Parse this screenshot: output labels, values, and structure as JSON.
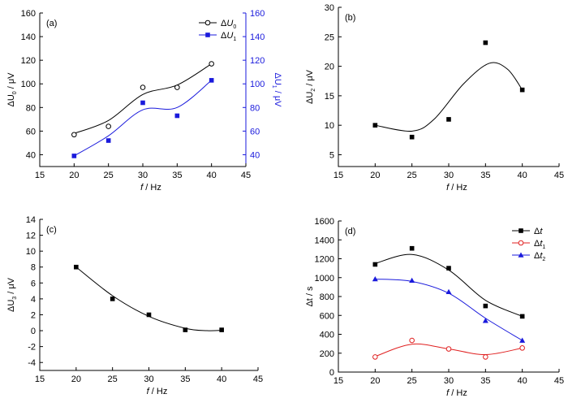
{
  "chart_data": [
    {
      "panel_label": "(a)",
      "type": "scatter",
      "xlabel": "f / Hz",
      "ylabel": "ΔU0 / μV",
      "ylabel_parts": {
        "main": "ΔU",
        "sub": "0",
        "rest": " / μV"
      },
      "y2label_parts": {
        "main": "ΔU",
        "sub": "1",
        "rest": " / μV"
      },
      "xlim": [
        15,
        45
      ],
      "ylim": [
        30,
        160
      ],
      "y2lim": [
        30,
        160
      ],
      "xticks": [
        15,
        20,
        25,
        30,
        35,
        40,
        45
      ],
      "yticks": [
        40,
        60,
        80,
        100,
        120,
        140,
        160
      ],
      "y2ticks": [
        40,
        60,
        80,
        100,
        120,
        140,
        160
      ],
      "legend": {
        "position": "top-right",
        "entries": [
          {
            "main": "ΔU",
            "sub": "0"
          },
          {
            "main": "ΔU",
            "sub": "1"
          }
        ]
      },
      "series": [
        {
          "x": [
            20,
            25,
            30,
            35,
            40
          ],
          "y": [
            57,
            64,
            97,
            97,
            117
          ],
          "marker": "open-circle",
          "color": "#000000",
          "fit": [
            [
              20,
              58
            ],
            [
              25,
              69
            ],
            [
              30,
              91
            ],
            [
              35,
              99
            ],
            [
              40,
              117
            ]
          ]
        },
        {
          "x": [
            20,
            25,
            30,
            35,
            40
          ],
          "y": [
            39,
            52,
            84,
            73,
            103
          ],
          "marker": "square",
          "color": "#1a1adc",
          "axis": "right",
          "fit": [
            [
              20,
              39
            ],
            [
              25,
              56
            ],
            [
              30,
              78
            ],
            [
              35,
              80
            ],
            [
              40,
              103
            ]
          ]
        }
      ]
    },
    {
      "panel_label": "(b)",
      "type": "scatter",
      "xlabel": "f / Hz",
      "ylabel_parts": {
        "main": "ΔU",
        "sub": "2",
        "rest": " / μV"
      },
      "xlim": [
        15,
        45
      ],
      "ylim": [
        3,
        30
      ],
      "xticks": [
        15,
        20,
        25,
        30,
        35,
        40,
        45
      ],
      "yticks": [
        5,
        10,
        15,
        20,
        25,
        30
      ],
      "series": [
        {
          "x": [
            20,
            25,
            30,
            35,
            40
          ],
          "y": [
            10,
            8,
            11,
            24,
            16
          ],
          "marker": "square",
          "color": "#000000",
          "fit": [
            [
              20,
              10
            ],
            [
              25,
              9
            ],
            [
              28,
              11
            ],
            [
              32,
              17
            ],
            [
              35.5,
              20.5
            ],
            [
              38,
              19.5
            ],
            [
              40,
              16
            ]
          ]
        }
      ]
    },
    {
      "panel_label": "(c)",
      "type": "scatter",
      "xlabel": "f / Hz",
      "ylabel_parts": {
        "main": "ΔU",
        "sub": "3",
        "rest": " / μV"
      },
      "xlim": [
        15,
        45
      ],
      "ylim": [
        -5,
        14
      ],
      "xticks": [
        15,
        20,
        25,
        30,
        35,
        40,
        45
      ],
      "yticks": [
        -4,
        -2,
        0,
        2,
        4,
        6,
        8,
        10,
        12,
        14
      ],
      "series": [
        {
          "x": [
            20,
            25,
            30,
            35,
            40
          ],
          "y": [
            8,
            4,
            2,
            0.1,
            0.1
          ],
          "marker": "square",
          "color": "#000000",
          "fit": [
            [
              20,
              8
            ],
            [
              25,
              4.4
            ],
            [
              30,
              1.8
            ],
            [
              35,
              0.3
            ],
            [
              38,
              0
            ],
            [
              40,
              0.05
            ]
          ]
        }
      ]
    },
    {
      "panel_label": "(d)",
      "type": "scatter",
      "xlabel": "f / Hz",
      "ylabel_parts": {
        "main": "Δt",
        "sub": "",
        "rest": " / s"
      },
      "xlim": [
        15,
        45
      ],
      "ylim": [
        0,
        1600
      ],
      "xticks": [
        15,
        20,
        25,
        30,
        35,
        40,
        45
      ],
      "yticks": [
        0,
        200,
        400,
        600,
        800,
        1000,
        1200,
        1400,
        1600
      ],
      "legend": {
        "position": "top-right",
        "entries": [
          {
            "main": "Δt",
            "sub": ""
          },
          {
            "main": "Δt",
            "sub": "1"
          },
          {
            "main": "Δt",
            "sub": "2"
          }
        ]
      },
      "series": [
        {
          "x": [
            20,
            25,
            30,
            35,
            40
          ],
          "y": [
            1140,
            1310,
            1100,
            700,
            590
          ],
          "marker": "square",
          "color": "#000000",
          "fit": [
            [
              20,
              1150
            ],
            [
              25,
              1245
            ],
            [
              30,
              1080
            ],
            [
              35,
              760
            ],
            [
              40,
              590
            ]
          ]
        },
        {
          "x": [
            20,
            25,
            30,
            35,
            40
          ],
          "y": [
            160,
            335,
            245,
            160,
            255
          ],
          "marker": "open-circle",
          "color": "#e02020",
          "fit": [
            [
              20,
              165
            ],
            [
              25,
              295
            ],
            [
              30,
              245
            ],
            [
              35,
              185
            ],
            [
              40,
              255
            ]
          ]
        },
        {
          "x": [
            20,
            25,
            30,
            35,
            40
          ],
          "y": [
            985,
            970,
            850,
            545,
            335
          ],
          "marker": "triangle",
          "color": "#1a1adc",
          "fit": [
            [
              20,
              985
            ],
            [
              25,
              960
            ],
            [
              30,
              835
            ],
            [
              35,
              570
            ],
            [
              40,
              335
            ]
          ]
        }
      ]
    }
  ]
}
